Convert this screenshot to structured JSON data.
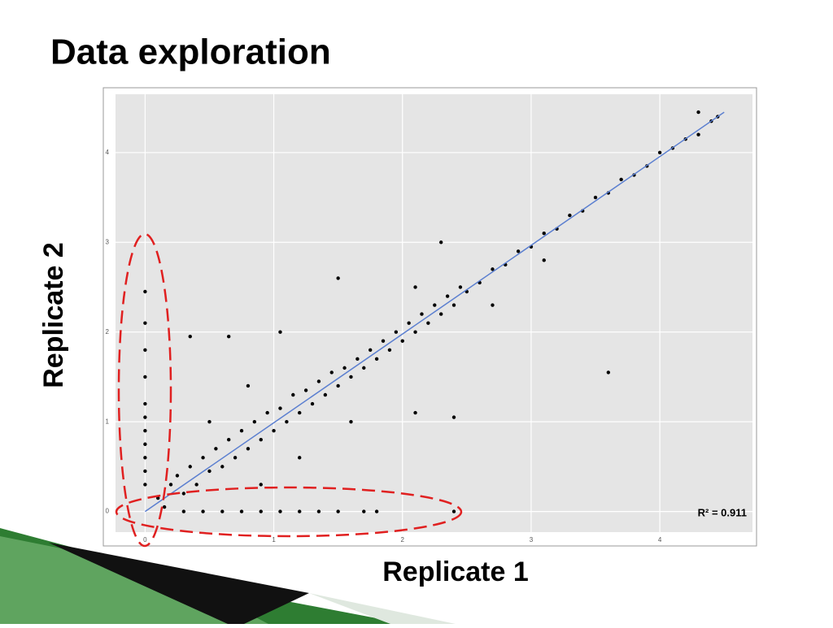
{
  "chart_data": {
    "type": "scatter",
    "title": "Data exploration",
    "x_label": "Replicate 1",
    "y_label": "Replicate 2",
    "annotation": "R² = 0.911",
    "color": "#000000",
    "x": [
      0.1,
      0.15,
      0.2,
      0.25,
      0.3,
      0.35,
      0.4,
      0.45,
      0.5,
      0.55,
      0.6,
      0.65,
      0.7,
      0.75,
      0.8,
      0.85,
      0.9,
      0.95,
      1.0,
      1.05,
      1.1,
      1.15,
      1.2,
      1.25,
      1.3,
      1.35,
      1.4,
      1.45,
      1.5,
      1.55,
      1.6,
      1.65,
      1.7,
      1.75,
      1.8,
      1.85,
      1.9,
      1.95,
      2.0,
      2.05,
      2.1,
      2.15,
      2.2,
      2.25,
      2.3,
      2.35,
      2.4,
      2.45,
      2.5,
      2.6,
      2.7,
      2.8,
      2.9,
      3.0,
      3.1,
      3.2,
      3.3,
      3.4,
      3.5,
      3.6,
      3.7,
      3.8,
      3.9,
      4.0,
      4.1,
      4.2,
      4.3,
      4.4,
      4.45,
      4.3,
      0.35,
      0.65,
      1.05,
      1.5,
      2.3,
      3.6,
      0.9,
      1.2,
      2.1,
      2.4,
      0.5,
      0.8,
      1.6,
      3.1,
      2.7,
      2.1,
      0,
      0,
      0,
      0,
      0,
      0,
      0,
      0,
      0,
      0,
      0,
      0.3,
      0.6,
      0.9,
      1.2,
      1.5,
      1.8,
      1.7,
      0.45,
      0.75,
      1.05,
      1.35,
      2.4
    ],
    "values": [
      0.15,
      0.05,
      0.3,
      0.4,
      0.2,
      0.5,
      0.3,
      0.6,
      0.45,
      0.7,
      0.5,
      0.8,
      0.6,
      0.9,
      0.7,
      1.0,
      0.8,
      1.1,
      0.9,
      1.15,
      1.0,
      1.3,
      1.1,
      1.35,
      1.2,
      1.45,
      1.3,
      1.55,
      1.4,
      1.6,
      1.5,
      1.7,
      1.6,
      1.8,
      1.7,
      1.9,
      1.8,
      2.0,
      1.9,
      2.1,
      2.0,
      2.2,
      2.1,
      2.3,
      2.2,
      2.4,
      2.3,
      2.5,
      2.45,
      2.55,
      2.7,
      2.75,
      2.9,
      2.95,
      3.1,
      3.15,
      3.3,
      3.35,
      3.5,
      3.55,
      3.7,
      3.75,
      3.85,
      4.0,
      4.05,
      4.15,
      4.2,
      4.35,
      4.4,
      4.45,
      1.95,
      1.95,
      2.0,
      2.6,
      3.0,
      1.55,
      0.3,
      0.6,
      1.1,
      1.05,
      1.0,
      1.4,
      1.0,
      2.8,
      2.3,
      2.5,
      0.3,
      0.6,
      0.9,
      1.2,
      1.5,
      1.8,
      2.1,
      2.45,
      0.45,
      0.75,
      1.05,
      0,
      0,
      0,
      0,
      0,
      0,
      0,
      0,
      0,
      0,
      0,
      0
    ],
    "fit": {
      "x": [
        0,
        4.5
      ],
      "y": [
        0,
        4.45
      ],
      "color": "#5b7fd0"
    },
    "xlim": [
      -0.23,
      4.72
    ],
    "ylim": [
      -0.23,
      4.65
    ],
    "xticks": [
      0,
      1,
      2,
      3,
      4
    ],
    "yticks": [
      0,
      1,
      2,
      3,
      4
    ],
    "grid": true
  }
}
